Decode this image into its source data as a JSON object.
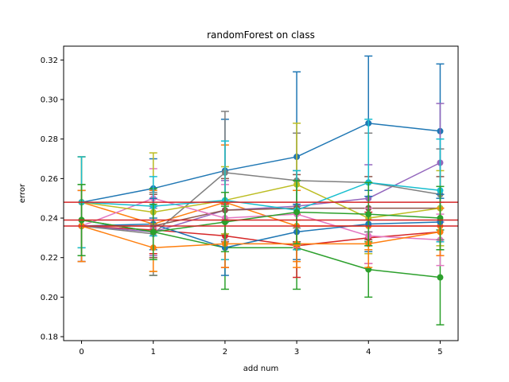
{
  "chart_data": {
    "type": "line",
    "title": "randomForest on class",
    "xlabel": "add num",
    "ylabel": "error",
    "x": [
      0,
      1,
      2,
      3,
      4,
      5
    ],
    "xlim": [
      -0.25,
      5.25
    ],
    "ylim": [
      0.178,
      0.327
    ],
    "xticks": [
      "0",
      "1",
      "2",
      "3",
      "4",
      "5"
    ],
    "yticks": [
      "0.18",
      "0.20",
      "0.22",
      "0.24",
      "0.26",
      "0.28",
      "0.30",
      "0.32"
    ],
    "ytick_values": [
      0.18,
      0.2,
      0.22,
      0.24,
      0.26,
      0.28,
      0.3,
      0.32
    ],
    "grid": false,
    "reference_lines": {
      "color": "#d62728",
      "values": [
        0.248,
        0.239,
        0.236
      ]
    },
    "series": [
      {
        "color": "#1f77b4",
        "values": [
          0.248,
          0.255,
          0.264,
          0.271,
          0.288,
          0.284
        ],
        "error": [
          0.023,
          0.015,
          0.026,
          0.043,
          0.034,
          0.034
        ]
      },
      {
        "color": "#ff7f0e",
        "values": [
          0.248,
          0.237,
          0.248,
          0.236,
          0.236,
          0.236
        ],
        "error": [
          0.023,
          0.017,
          0.029,
          0.018,
          0.012,
          0.012
        ]
      },
      {
        "color": "#2ca02c",
        "values": [
          0.239,
          0.233,
          0.225,
          0.225,
          0.214,
          0.21
        ],
        "error": [
          0.018,
          0.022,
          0.021,
          0.021,
          0.014,
          0.024
        ]
      },
      {
        "color": "#d62728",
        "values": [
          0.236,
          0.234,
          0.231,
          0.226,
          0.23,
          0.233
        ],
        "error": [
          0.018,
          0.012,
          0.016,
          0.016,
          0.013,
          0.012
        ]
      },
      {
        "color": "#9467bd",
        "values": [
          0.236,
          0.233,
          0.244,
          0.246,
          0.25,
          0.268
        ],
        "error": [
          0.018,
          0.012,
          0.015,
          0.018,
          0.017,
          0.03
        ]
      },
      {
        "color": "#8c564b",
        "values": [
          0.236,
          0.236,
          0.244,
          0.245,
          0.245,
          0.245
        ],
        "error": [
          0.018,
          0.016,
          0.016,
          0.017,
          0.016,
          0.016
        ]
      },
      {
        "color": "#e377c2",
        "values": [
          0.236,
          0.25,
          0.24,
          0.242,
          0.231,
          0.229
        ],
        "error": [
          0.018,
          0.015,
          0.017,
          0.017,
          0.014,
          0.013
        ]
      },
      {
        "color": "#7f7f7f",
        "values": [
          0.236,
          0.232,
          0.263,
          0.259,
          0.258,
          0.252
        ],
        "error": [
          0.018,
          0.021,
          0.031,
          0.024,
          0.025,
          0.023
        ]
      },
      {
        "color": "#bcbd22",
        "values": [
          0.248,
          0.243,
          0.249,
          0.257,
          0.24,
          0.245
        ],
        "error": [
          0.023,
          0.03,
          0.017,
          0.031,
          0.018,
          0.019
        ]
      },
      {
        "color": "#17becf",
        "values": [
          0.248,
          0.246,
          0.249,
          0.244,
          0.258,
          0.254
        ],
        "error": [
          0.023,
          0.015,
          0.03,
          0.02,
          0.032,
          0.026
        ]
      },
      {
        "color": "#1f77b4",
        "values": [
          0.236,
          0.237,
          0.225,
          0.233,
          0.237,
          0.238
        ],
        "error": [
          0.018,
          0.013,
          0.014,
          0.014,
          0.014,
          0.014
        ]
      },
      {
        "color": "#ff7f0e",
        "values": [
          0.236,
          0.225,
          0.227,
          0.227,
          0.227,
          0.233
        ],
        "error": [
          0.018,
          0.012,
          0.012,
          0.012,
          0.012,
          0.012
        ]
      },
      {
        "color": "#2ca02c",
        "values": [
          0.239,
          0.233,
          0.238,
          0.243,
          0.242,
          0.24
        ],
        "error": [
          0.018,
          0.014,
          0.015,
          0.016,
          0.016,
          0.016
        ]
      }
    ]
  }
}
